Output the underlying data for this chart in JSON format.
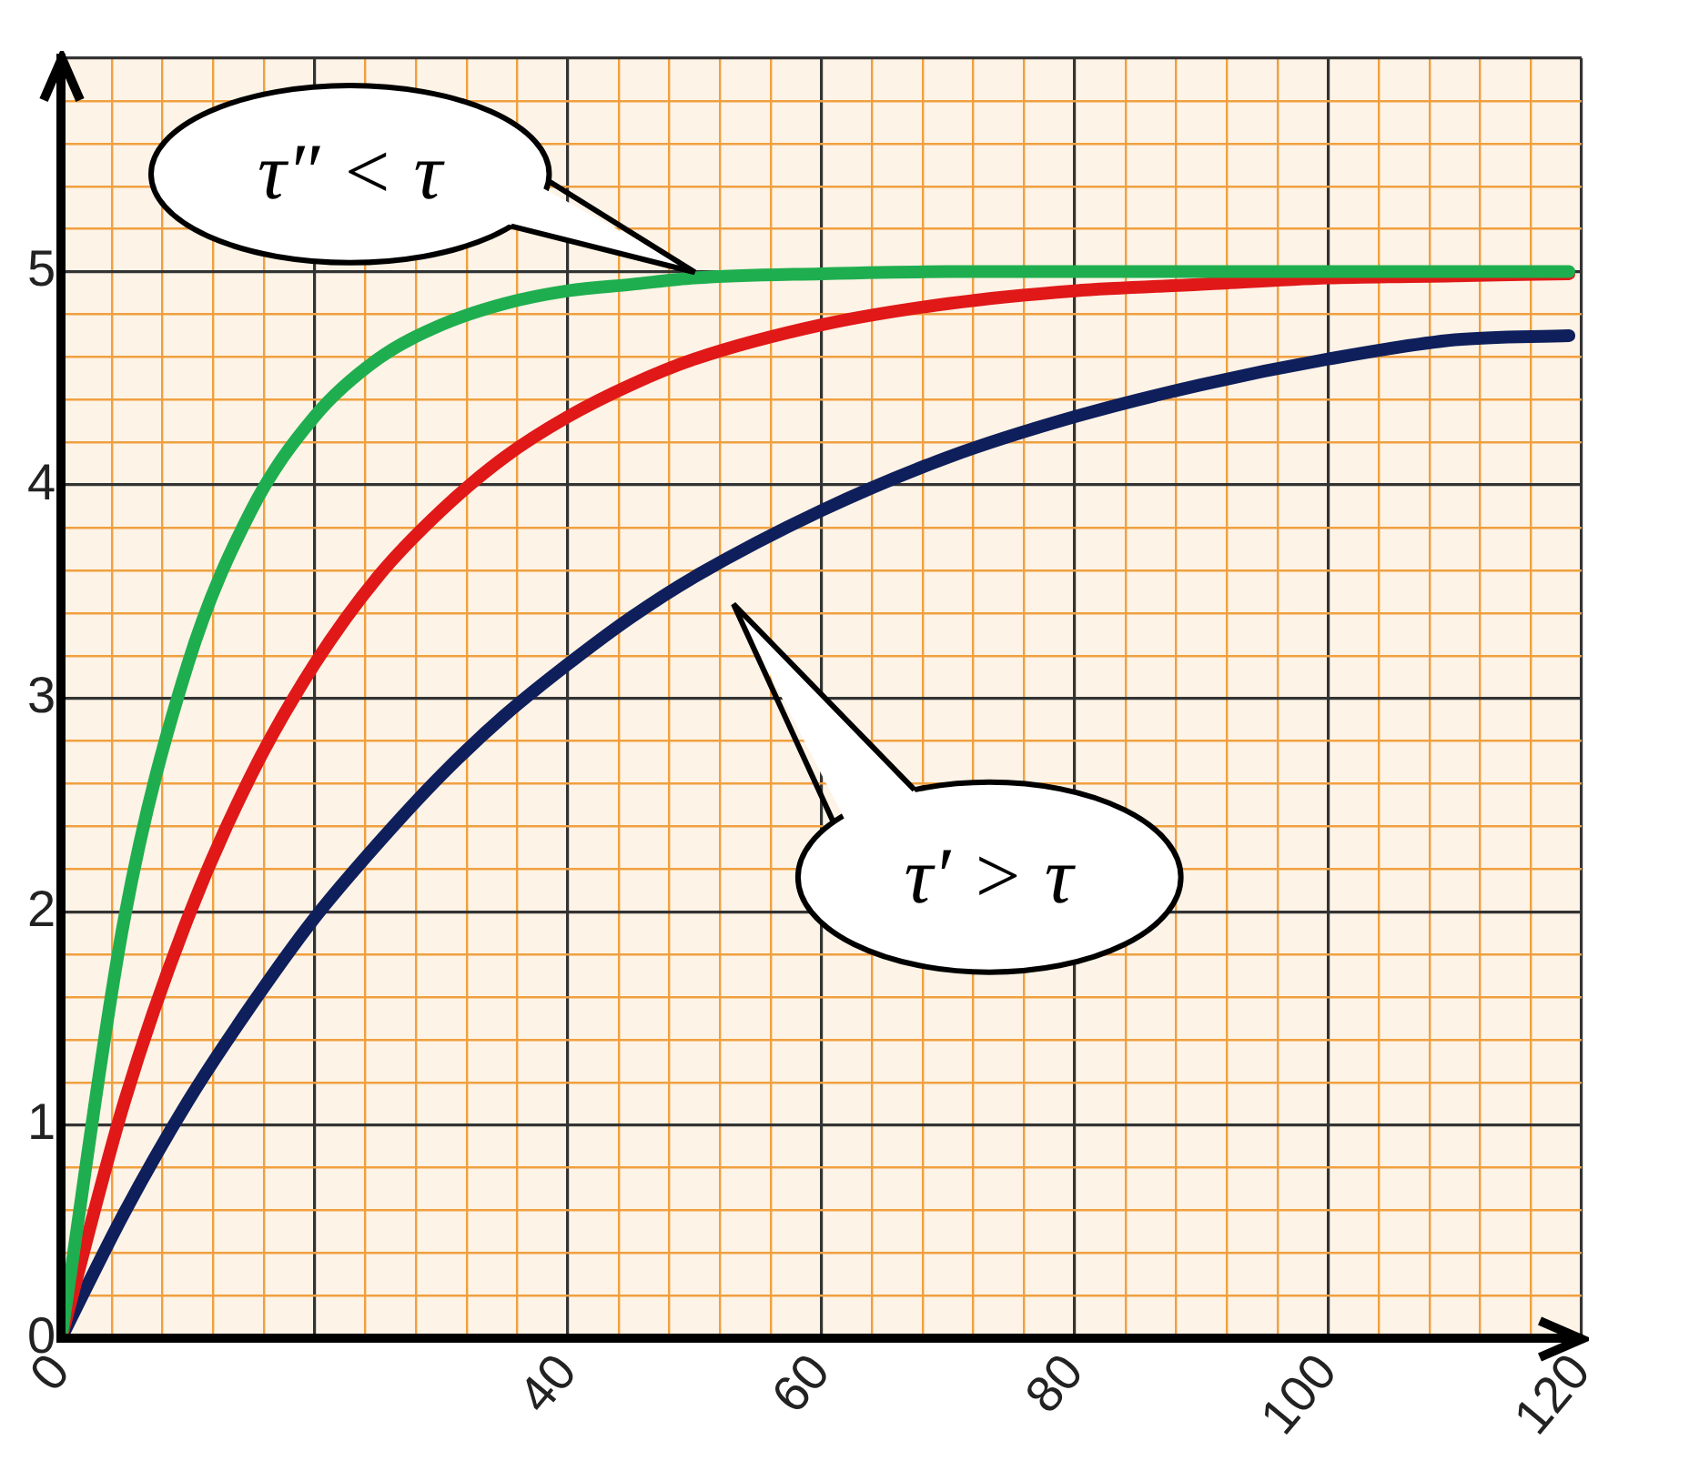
{
  "chart_data": {
    "type": "line",
    "x": [
      0,
      5,
      10,
      15,
      20,
      25,
      30,
      35,
      40,
      45,
      50,
      60,
      70,
      80,
      90,
      100,
      110,
      119
    ],
    "series": [
      {
        "color": "#1fae4f",
        "values": [
          0,
          1.97,
          3.16,
          3.88,
          4.32,
          4.59,
          4.75,
          4.85,
          4.91,
          4.94,
          4.97,
          4.99,
          5,
          5,
          5,
          5,
          5,
          5
        ]
      },
      {
        "color": "#e01818",
        "values": [
          0,
          1.11,
          1.97,
          2.64,
          3.16,
          3.57,
          3.88,
          4.13,
          4.32,
          4.47,
          4.59,
          4.75,
          4.85,
          4.91,
          4.94,
          4.97,
          4.98,
          4.99
        ]
      },
      {
        "color": "#0f1f5c",
        "values": [
          0,
          0.59,
          1.11,
          1.56,
          1.97,
          2.32,
          2.64,
          2.92,
          3.16,
          3.38,
          3.57,
          3.88,
          4.13,
          4.32,
          4.47,
          4.59,
          4.68,
          4.7
        ]
      }
    ],
    "xlim": [
      0,
      120
    ],
    "xticks": [
      0,
      {
        "value": 4,
        "label": null
      },
      {
        "value": 8,
        "label": null
      },
      {
        "value": 12,
        "label": null
      },
      {
        "value": 16,
        "label": null
      },
      {
        "value": 20,
        "label": null
      },
      {
        "value": 24,
        "label": null
      },
      {
        "value": 28,
        "label": null
      },
      {
        "value": 32,
        "label": null
      },
      {
        "value": 36,
        "label": null
      },
      40,
      {
        "value": 44,
        "label": null
      },
      {
        "value": 48,
        "label": null
      },
      {
        "value": 52,
        "label": null
      },
      {
        "value": 56,
        "label": null
      },
      60,
      {
        "value": 64,
        "label": null
      },
      {
        "value": 68,
        "label": null
      },
      {
        "value": 72,
        "label": null
      },
      {
        "value": 76,
        "label": null
      },
      80,
      {
        "value": 84,
        "label": null
      },
      {
        "value": 88,
        "label": null
      },
      {
        "value": 92,
        "label": null
      },
      {
        "value": 96,
        "label": null
      },
      100,
      {
        "value": 104,
        "label": null
      },
      {
        "value": 108,
        "label": null
      },
      {
        "value": 112,
        "label": null
      },
      {
        "value": 116,
        "label": null
      },
      120
    ],
    "ylim": [
      0,
      6
    ],
    "yticks": [
      0,
      {
        "value": 0.2,
        "label": null
      },
      {
        "value": 0.4,
        "label": null
      },
      {
        "value": 0.6,
        "label": null
      },
      {
        "value": 0.8,
        "label": null
      },
      1,
      {
        "value": 1.2,
        "label": null
      },
      {
        "value": 1.4,
        "label": null
      },
      {
        "value": 1.6,
        "label": null
      },
      {
        "value": 1.8,
        "label": null
      },
      2,
      {
        "value": 2.2,
        "label": null
      },
      {
        "value": 2.4,
        "label": null
      },
      {
        "value": 2.6,
        "label": null
      },
      {
        "value": 2.8,
        "label": null
      },
      3,
      {
        "value": 3.2,
        "label": null
      },
      {
        "value": 3.4,
        "label": null
      },
      {
        "value": 3.6,
        "label": null
      },
      {
        "value": 3.8,
        "label": null
      },
      4,
      {
        "value": 4.2,
        "label": null
      },
      {
        "value": 4.4,
        "label": null
      },
      {
        "value": 4.6,
        "label": null
      },
      {
        "value": 4.8,
        "label": null
      },
      5,
      {
        "value": 5.2,
        "label": null
      },
      {
        "value": 5.4,
        "label": null
      },
      {
        "value": 5.6,
        "label": null
      },
      {
        "value": 5.8,
        "label": null
      },
      {
        "value": 6,
        "label": null
      }
    ],
    "grid": true,
    "legend": false,
    "marker": "none",
    "line_style": "solid",
    "annotations": [
      "τ″ < τ",
      "τ′ > τ"
    ]
  }
}
